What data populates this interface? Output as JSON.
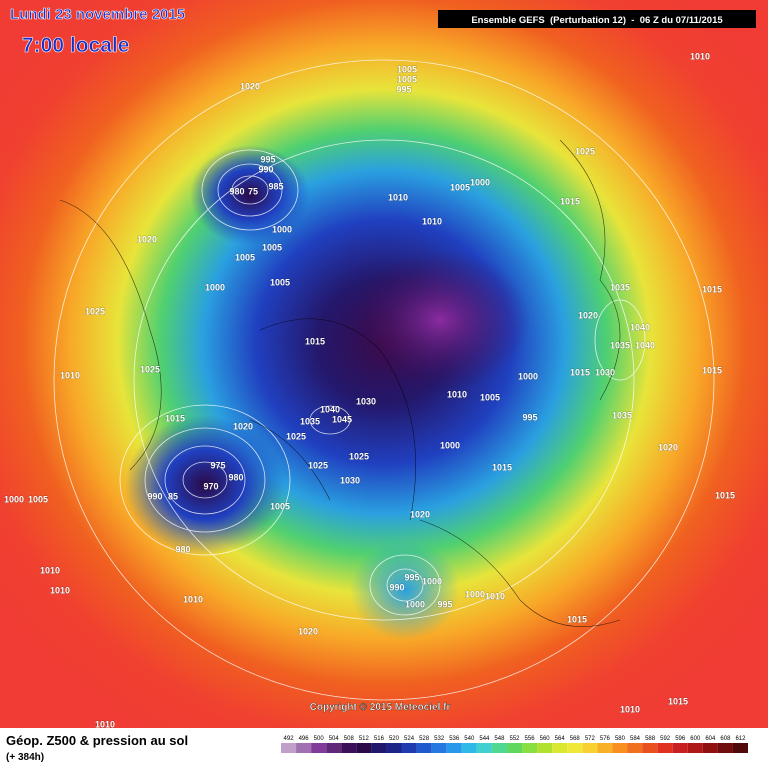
{
  "header": {
    "date": "Lundi 23 novembre 2015",
    "time": "7:00 locale",
    "run": "Ensemble GEFS  (Perturbation 12)  -  06 Z du 07/11/2015"
  },
  "map": {
    "pressure_labels": [
      1020,
      1005,
      1005,
      995,
      1010,
      995,
      990,
      980,
      75,
      985,
      1005,
      1000,
      1025,
      1010,
      1010,
      1015,
      1020,
      1000,
      1005,
      1005,
      1005,
      1000,
      1035,
      1015,
      1025,
      1020,
      1040,
      1035,
      1040,
      1015,
      1025,
      1010,
      1015,
      1030,
      1000,
      1015,
      1010,
      1005,
      1030,
      1040,
      1045,
      1035,
      995,
      1035,
      1015,
      1020,
      1025,
      1000,
      1020,
      1025,
      975,
      980,
      1025,
      1015,
      970,
      1030,
      990,
      85,
      1000,
      1005,
      1015,
      1005,
      1020,
      980,
      995,
      990,
      1000,
      1010,
      1010,
      1010,
      1000,
      995,
      1000,
      1010,
      1015,
      1020,
      1010,
      1015,
      1010
    ],
    "copyright": "Copyright © 2015 Meteociel.fr"
  },
  "footer": {
    "title": "Géop. Z500 & pression au sol",
    "lead": "(+ 384h)"
  },
  "legend": {
    "values": [
      492,
      496,
      500,
      504,
      508,
      512,
      516,
      520,
      524,
      528,
      532,
      536,
      540,
      544,
      548,
      552,
      556,
      560,
      564,
      568,
      572,
      576,
      580,
      584,
      588,
      592,
      596,
      600,
      604,
      608,
      612
    ],
    "colors": [
      "#c0a0c8",
      "#a070b0",
      "#803c98",
      "#602878",
      "#3c1058",
      "#2a0a48",
      "#20186a",
      "#1c2488",
      "#1e3cb0",
      "#2058d0",
      "#2478e0",
      "#2898e8",
      "#30b8e8",
      "#40d0d0",
      "#50d890",
      "#60d860",
      "#88e040",
      "#b0e030",
      "#d8e830",
      "#f0e838",
      "#f8d030",
      "#f8b028",
      "#f89020",
      "#f07020",
      "#e85020",
      "#e03020",
      "#c82020",
      "#b01818",
      "#901010",
      "#700c0c",
      "#500808"
    ]
  }
}
